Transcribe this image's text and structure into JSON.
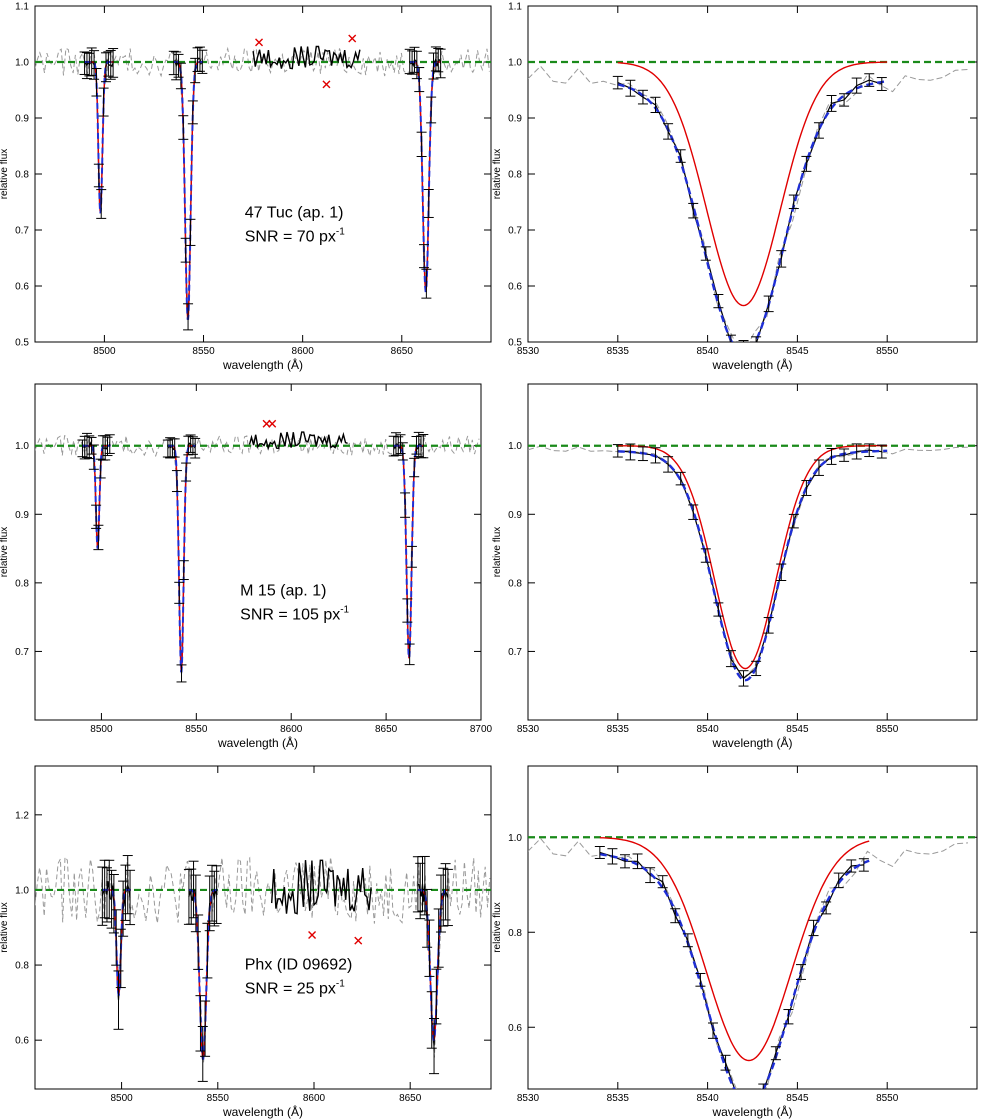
{
  "colors": {
    "observed": "#000000",
    "masked": "#999999",
    "fit_red": "#e00000",
    "fit_blue": "#1f2fd6",
    "continuum": "#1a8a1a",
    "rejected": "#e00000"
  },
  "chart_data": [
    {
      "id": "tuc-full",
      "type": "line",
      "xlabel": "wavelength  (Å)",
      "ylabel": "relative flux",
      "xlim": [
        8465,
        8695
      ],
      "ylim": [
        0.5,
        1.1
      ],
      "xticks": [
        8500,
        8550,
        8600,
        8650
      ],
      "yticks": [
        0.5,
        0.6,
        0.7,
        0.8,
        0.9,
        1.0,
        1.1
      ],
      "annotation": {
        "name": "47 Tuc (ap. 1)",
        "snr_prefix": "SNR = 70 px",
        "snr_sup": "-1"
      },
      "line_centers": [
        8498.0,
        8542.1,
        8662.1
      ],
      "line_depths": [
        0.27,
        0.46,
        0.41
      ],
      "line_widths": [
        1.0,
        1.4,
        1.5
      ],
      "fit_windows": [
        [
          8490,
          8505
        ],
        [
          8535,
          8550
        ],
        [
          8654,
          8670
        ]
      ],
      "masked_amplitude": 0.025,
      "continuum_window": [
        8575,
        8630
      ],
      "rejected_points": [
        [
          8578,
          1.035
        ],
        [
          8612,
          0.96
        ],
        [
          8625,
          1.042
        ]
      ]
    },
    {
      "id": "tuc-zoom",
      "type": "line",
      "xlabel": "wavelength  (Å)",
      "ylabel": "relative flux",
      "xlim": [
        8530,
        8555
      ],
      "ylim": [
        0.5,
        1.1
      ],
      "xticks": [
        8530,
        8535,
        8540,
        8545,
        8550
      ],
      "yticks": [
        0.5,
        0.6,
        0.7,
        0.8,
        0.9,
        1.0,
        1.1
      ],
      "center": 8542.0,
      "obs_depth": 0.47,
      "obs_width": 2.2,
      "red_depth": 0.435,
      "red_width": 2.05,
      "wing_depth": 0.05,
      "wing_width": 9,
      "fit_range": [
        8535,
        8550
      ]
    },
    {
      "id": "m15-full",
      "type": "line",
      "xlabel": "wavelength  (Å)",
      "ylabel": "relative flux",
      "xlim": [
        8465,
        8700
      ],
      "ylim": [
        0.6,
        1.09
      ],
      "xticks": [
        8500,
        8550,
        8600,
        8650,
        8700
      ],
      "yticks": [
        0.7,
        0.8,
        0.9,
        1.0
      ],
      "annotation": {
        "name": "M 15 (ap. 1)",
        "snr_prefix": "SNR = 105 px",
        "snr_sup": "-1"
      },
      "line_centers": [
        8498.0,
        8542.1,
        8662.1
      ],
      "line_depths": [
        0.15,
        0.33,
        0.31
      ],
      "line_widths": [
        0.9,
        1.2,
        1.3
      ],
      "fit_windows": [
        [
          8490,
          8505
        ],
        [
          8535,
          8550
        ],
        [
          8654,
          8670
        ]
      ],
      "masked_amplitude": 0.015,
      "continuum_window": [
        8578,
        8630
      ],
      "rejected_points": [
        [
          8587,
          1.032
        ],
        [
          8590,
          1.032
        ]
      ]
    },
    {
      "id": "m15-zoom",
      "type": "line",
      "xlabel": "wavelength  (Å)",
      "ylabel": "relative flux",
      "xlim": [
        8530,
        8555
      ],
      "ylim": [
        0.6,
        1.09
      ],
      "xticks": [
        8530,
        8535,
        8540,
        8545,
        8550
      ],
      "yticks": [
        0.7,
        0.8,
        0.9,
        1.0
      ],
      "center": 8542.1,
      "obs_depth": 0.33,
      "obs_width": 1.75,
      "red_depth": 0.325,
      "red_width": 1.7,
      "wing_depth": 0.012,
      "wing_width": 8,
      "fit_range": [
        8535,
        8550
      ]
    },
    {
      "id": "phx-full",
      "type": "line",
      "xlabel": "wavelength  (Å)",
      "ylabel": "relative flux",
      "xlim": [
        8455,
        8692
      ],
      "ylim": [
        0.47,
        1.33
      ],
      "xticks": [
        8500,
        8550,
        8600,
        8650
      ],
      "yticks": [
        0.6,
        0.8,
        1.0,
        1.2
      ],
      "annotation": {
        "name": "Phx (ID 09692)",
        "snr_prefix": "SNR = 25 px",
        "snr_sup": "-1"
      },
      "line_centers": [
        8498.5,
        8542.3,
        8662.3
      ],
      "line_depths": [
        0.28,
        0.45,
        0.4
      ],
      "line_widths": [
        1.1,
        1.7,
        1.8
      ],
      "fit_windows": [
        [
          8490,
          8505
        ],
        [
          8535,
          8550
        ],
        [
          8654,
          8670
        ]
      ],
      "masked_amplitude": 0.09,
      "continuum_window": [
        8578,
        8630
      ],
      "rejected_points": [
        [
          8599,
          0.88
        ],
        [
          8623,
          0.865
        ]
      ]
    },
    {
      "id": "phx-zoom",
      "type": "line",
      "xlabel": "wavelength  (Å)",
      "ylabel": "relative flux",
      "xlim": [
        8530,
        8555
      ],
      "ylim": [
        0.47,
        1.15
      ],
      "xticks": [
        8530,
        8535,
        8540,
        8545,
        8550
      ],
      "yticks": [
        0.6,
        0.8,
        1.0
      ],
      "center": 8542.3,
      "obs_depth": 0.5,
      "obs_width": 2.3,
      "red_depth": 0.47,
      "red_width": 2.35,
      "wing_depth": 0.06,
      "wing_width": 8,
      "fit_range": [
        8534,
        8549
      ]
    }
  ]
}
